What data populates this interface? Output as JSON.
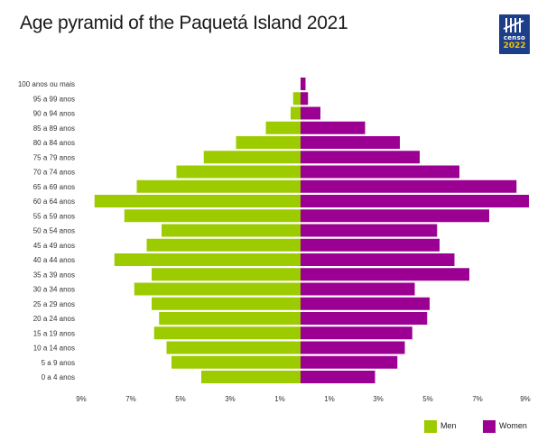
{
  "title": "Age pyramid of the Paquetá Island 2021",
  "logo": {
    "text_top": "censo",
    "text_bottom": "2022"
  },
  "colors": {
    "men": "#9ccc00",
    "women": "#9b0092"
  },
  "chart_data": {
    "type": "bar",
    "orientation": "horizontal",
    "title": "Age pyramid of the Paquetá Island 2021",
    "unit": "%",
    "categories": [
      "0 a 4 anos",
      "5 a 9 anos",
      "10 a 14 anos",
      "15 a 19 anos",
      "20 a 24 anos",
      "25 a 29 anos",
      "30 a 34 anos",
      "35 a 39 anos",
      "40 a 44 anos",
      "45 a 49 anos",
      "50 a 54 anos",
      "55 a 59 anos",
      "60 a 64 anos",
      "65 a 69 anos",
      "70 a 74 anos",
      "75 a 79 anos",
      "80 a 84 anos",
      "85 a 89 anos",
      "90 a 94 anos",
      "95 a 99 anos",
      "100 anos ou mais"
    ],
    "series": [
      {
        "name": "Men",
        "color": "#9ccc00",
        "values": [
          4.0,
          5.2,
          5.4,
          5.9,
          5.7,
          6.0,
          6.7,
          6.0,
          7.5,
          6.2,
          5.6,
          7.1,
          8.3,
          6.6,
          5.0,
          3.9,
          2.6,
          1.4,
          0.4,
          0.3,
          0.0
        ]
      },
      {
        "name": "Women",
        "color": "#9b0092",
        "values": [
          3.0,
          3.9,
          4.2,
          4.5,
          5.1,
          5.2,
          4.6,
          6.8,
          6.2,
          5.6,
          5.5,
          7.6,
          9.2,
          8.7,
          6.4,
          4.8,
          4.0,
          2.6,
          0.8,
          0.3,
          0.2
        ]
      }
    ],
    "xticks": [
      "9%",
      "7%",
      "5%",
      "3%",
      "1%",
      "1%",
      "3%",
      "5%",
      "7%",
      "9%"
    ],
    "xlim": [
      -9,
      9
    ],
    "legend": "bottom-right",
    "grid": false
  }
}
